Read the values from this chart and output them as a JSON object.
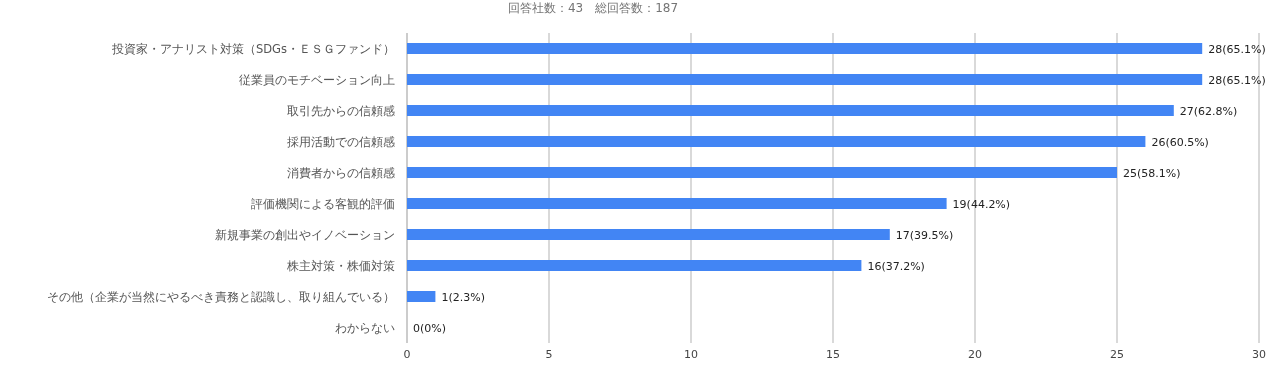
{
  "chart_data": {
    "type": "bar",
    "orientation": "horizontal",
    "title": "回答社数：43　総回答数：187",
    "categories": [
      "投資家・アナリスト対策（SDGs・ＥＳＧファンド）",
      "従業員のモチベーション向上",
      "取引先からの信頼感",
      "採用活動での信頼感",
      "消費者からの信頼感",
      "評価機関による客観的評価",
      "新規事業の創出やイノベーション",
      "株主対策・株価対策",
      "その他（企業が当然にやるべき責務と認識し、取り組んでいる）",
      "わからない"
    ],
    "values": [
      28,
      28,
      27,
      26,
      25,
      19,
      17,
      16,
      1,
      0
    ],
    "value_labels": [
      "28(65.1%)",
      "28(65.1%)",
      "27(62.8%)",
      "26(60.5%)",
      "25(58.1%)",
      "19(44.2%)",
      "17(39.5%)",
      "16(37.2%)",
      "1(2.3%)",
      "0(0%)"
    ],
    "color": "#4285f4",
    "xlim": [
      0,
      30
    ],
    "xticks": [
      0,
      5,
      10,
      15,
      20,
      25,
      30
    ],
    "grid": "x"
  }
}
